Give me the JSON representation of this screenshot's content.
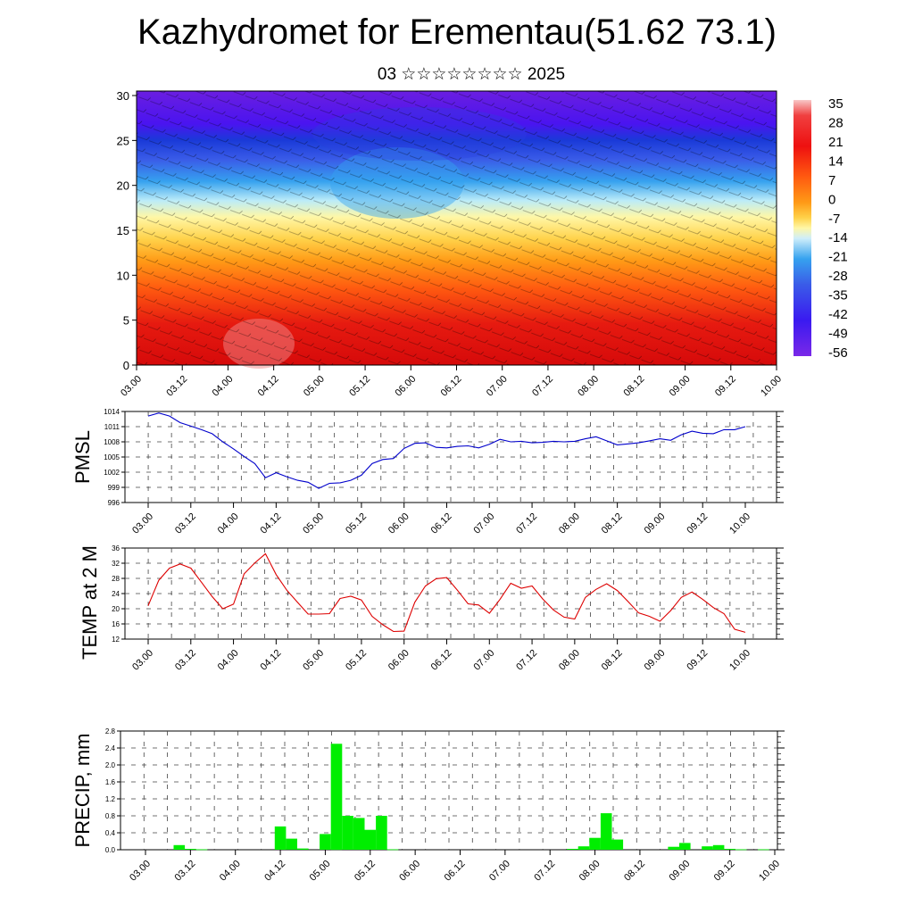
{
  "title": "Kazhydromet for Erementau(51.62 73.1)",
  "subtitle": "03 ☆☆☆☆☆☆☆☆ 2025",
  "chart_data": [
    {
      "type": "heatmap",
      "name": "vertical cross-section",
      "xlabel": "",
      "ylabel": "",
      "x_tick_labels": [
        "03.00",
        "03.12",
        "04.00",
        "04.12",
        "05.00",
        "05.12",
        "06.00",
        "06.12",
        "07.00",
        "07.12",
        "08.00",
        "08.12",
        "09.00",
        "09.12",
        "10.00"
      ],
      "y_ticks": [
        0,
        5,
        10,
        15,
        20,
        25,
        30
      ],
      "ylim": [
        0,
        30.5
      ],
      "colorbar_labels": [
        "35",
        "28",
        "21",
        "14",
        "7",
        "0",
        "-7",
        "-14",
        "-21",
        "-28",
        "-35",
        "-42",
        "-49",
        "-56"
      ],
      "colors": {
        "cold": "#5a12e0",
        "cool": "#2aa8f0",
        "mild": "#fff4a0",
        "warm": "#ff9a10",
        "hot": "#e01010"
      },
      "overlay": "wind barbs"
    },
    {
      "type": "line",
      "ylabel": "PMSL",
      "x_tick_labels": [
        "03.00",
        "03.12",
        "04.00",
        "04.12",
        "05.00",
        "05.12",
        "06.00",
        "06.12",
        "07.00",
        "07.12",
        "08.00",
        "08.12",
        "09.00",
        "09.12",
        "10.00"
      ],
      "y_tick_labels": [
        "1014",
        "1011",
        "1008",
        "1005",
        "1002",
        "999",
        "996"
      ],
      "ylim": [
        996,
        1014
      ],
      "line_color": "#0000cc",
      "x": [
        0,
        3,
        6,
        9,
        12,
        15,
        18,
        21,
        24,
        27,
        30,
        33,
        36,
        39,
        42,
        45,
        48,
        51,
        54,
        57,
        60,
        63,
        66,
        69,
        72,
        75,
        78,
        81,
        84,
        87,
        90,
        93,
        96,
        99,
        102,
        105,
        108,
        111,
        114,
        117,
        120,
        123,
        126,
        129,
        132,
        135,
        138,
        141,
        144,
        147,
        150,
        153,
        156,
        159,
        162,
        165,
        168
      ],
      "values": [
        1013.1,
        1013.7,
        1013.1,
        1011.8,
        1011.1,
        1010.4,
        1009.6,
        1008.0,
        1006.6,
        1005.1,
        1003.7,
        1000.9,
        1001.9,
        1001.1,
        1000.4,
        1000.0,
        998.8,
        999.8,
        999.9,
        1000.4,
        1001.4,
        1003.7,
        1004.5,
        1004.7,
        1006.7,
        1007.7,
        1007.8,
        1006.9,
        1006.8,
        1007.1,
        1007.2,
        1006.8,
        1007.5,
        1008.5,
        1008.0,
        1008.1,
        1007.8,
        1007.9,
        1008.1,
        1008.0,
        1008.1,
        1008.6,
        1009.0,
        1008.2,
        1007.4,
        1007.6,
        1007.8,
        1008.2,
        1008.6,
        1008.3,
        1009.4,
        1010.1,
        1009.7,
        1009.6,
        1010.4,
        1010.4,
        1011.0
      ]
    },
    {
      "type": "line",
      "ylabel": "TEMP at 2 M",
      "x_tick_labels": [
        "03.00",
        "03.12",
        "04.00",
        "04.12",
        "05.00",
        "05.12",
        "06.00",
        "06.12",
        "07.00",
        "07.12",
        "08.00",
        "08.12",
        "09.00",
        "09.12",
        "10.00"
      ],
      "y_tick_labels": [
        "36",
        "32",
        "28",
        "24",
        "20",
        "16",
        "12"
      ],
      "ylim": [
        12,
        36
      ],
      "line_color": "#dd0000",
      "x": [
        0,
        3,
        6,
        9,
        12,
        15,
        18,
        21,
        24,
        27,
        30,
        33,
        36,
        39,
        42,
        45,
        48,
        51,
        54,
        57,
        60,
        63,
        66,
        69,
        72,
        75,
        78,
        81,
        84,
        87,
        90,
        93,
        96,
        99,
        102,
        105,
        108,
        111,
        114,
        117,
        120,
        123,
        126,
        129,
        132,
        135,
        138,
        141,
        144,
        147,
        150,
        153,
        156,
        159,
        162,
        165,
        168
      ],
      "values": [
        20.8,
        27.5,
        30.7,
        31.8,
        30.7,
        27.0,
        23.2,
        20.0,
        21.2,
        29.2,
        32.1,
        34.5,
        29.0,
        24.9,
        21.7,
        18.6,
        18.6,
        18.7,
        22.7,
        23.3,
        22.3,
        18.0,
        15.8,
        14.0,
        14.1,
        21.7,
        26.0,
        27.9,
        28.2,
        24.9,
        21.3,
        21.0,
        18.8,
        22.5,
        26.7,
        25.4,
        26.0,
        22.6,
        19.7,
        17.8,
        17.3,
        23.0,
        25.1,
        26.6,
        24.8,
        21.9,
        18.9,
        18.0,
        16.7,
        19.5,
        23.0,
        24.4,
        22.5,
        20.3,
        18.7,
        14.6,
        13.8
      ]
    },
    {
      "type": "bar",
      "ylabel": "PRECIP, mm",
      "x_tick_labels": [
        "03.00",
        "03.12",
        "04.00",
        "04.12",
        "05.00",
        "05.12",
        "06.00",
        "06.12",
        "07.00",
        "07.12",
        "08.00",
        "08.12",
        "09.00",
        "09.12",
        "10.00"
      ],
      "y_tick_labels": [
        "2.8",
        "2.4",
        "2.0",
        "1.6",
        "1.2",
        "0.8",
        "0.4",
        "0.0"
      ],
      "ylim": [
        0,
        2.8
      ],
      "bar_color": "#00ee00",
      "x": [
        9,
        12,
        15,
        36,
        39,
        42,
        48,
        51,
        54,
        57,
        60,
        63,
        66,
        114,
        117,
        120,
        123,
        126,
        141,
        144,
        150,
        153,
        156,
        159,
        165
      ],
      "values": [
        0.11,
        0.02,
        0.01,
        0.55,
        0.26,
        0.03,
        0.37,
        2.5,
        0.8,
        0.75,
        0.47,
        0.8,
        0.01,
        0.02,
        0.08,
        0.28,
        0.86,
        0.24,
        0.07,
        0.16,
        0.08,
        0.11,
        0.02,
        0.01,
        0.01
      ]
    }
  ]
}
